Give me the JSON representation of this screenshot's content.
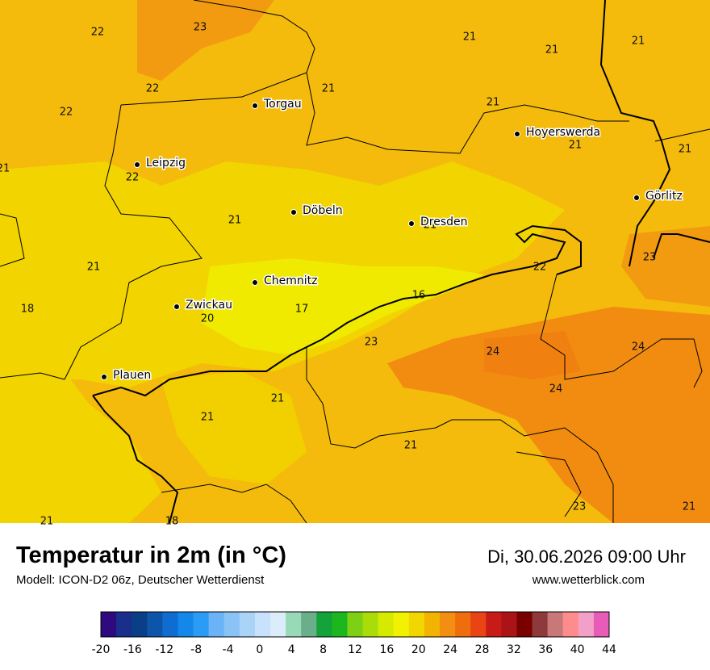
{
  "title": "Temperatur in 2m (in °C)",
  "subtitle": "Modell: ICON-D2 06z, Deutscher Wetterdienst",
  "datetime": "Di, 30.06.2026 09:00 Uhr",
  "website": "www.wetterblick.com",
  "cities": [
    "Torgau",
    "Hoyerswerda",
    "Leipzig",
    "Görlitz",
    "Döbeln",
    "Dresden",
    "Chemnitz",
    "Zwickau",
    "Plauen"
  ],
  "temperature_labels": [
    22,
    23,
    21,
    21,
    21,
    22,
    21,
    22,
    21,
    21,
    21,
    21,
    22,
    21,
    21,
    23,
    22,
    21,
    16,
    18,
    17,
    20,
    23,
    24,
    24,
    24,
    21,
    21,
    21,
    23,
    21,
    21,
    18
  ],
  "colorbar": {
    "ticks": [
      -20,
      -16,
      -12,
      -8,
      -4,
      0,
      4,
      8,
      12,
      16,
      20,
      24,
      28,
      32,
      36,
      40,
      44
    ],
    "colors": [
      "#2e0a7e",
      "#1a2e8c",
      "#0a3e86",
      "#0c55a8",
      "#0f6cd0",
      "#1487ea",
      "#2a9cf6",
      "#6ab3f6",
      "#8ac3f6",
      "#a9d3f7",
      "#c8e2fb",
      "#dbecfb",
      "#98dab8",
      "#6bae8a",
      "#14a23a",
      "#1cb71e",
      "#7ed015",
      "#aadc0a",
      "#d6ea00",
      "#f2f200",
      "#f2d600",
      "#f2b400",
      "#f28e12",
      "#ee6e0e",
      "#e84414",
      "#c81b18",
      "#aa1416",
      "#7a0000",
      "#8e3a3a",
      "#c87878",
      "#ff8c8c",
      "#f2a0c8",
      "#e85cb8"
    ]
  }
}
